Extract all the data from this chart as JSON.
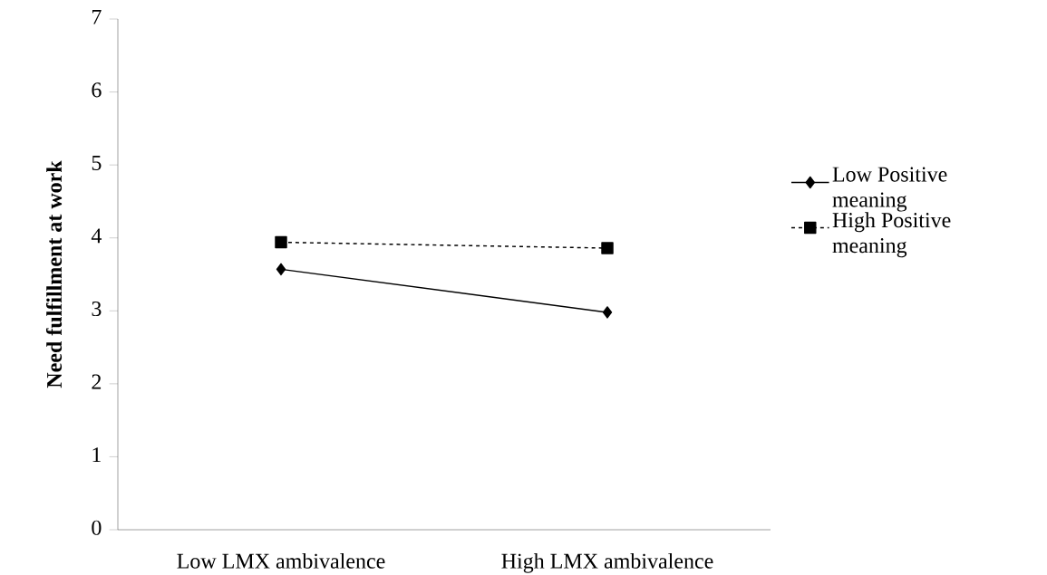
{
  "chart_data": {
    "type": "line",
    "ylabel": "Need fulfillment at work",
    "categories": [
      "Low LMX ambivalence",
      "High LMX ambivalence"
    ],
    "series": [
      {
        "name": "Low Positive meaning",
        "color": "#000000",
        "values": [
          3.57,
          2.98
        ],
        "marker": "diamond",
        "line_style": "solid"
      },
      {
        "name": "High Positive meaning",
        "color": "#000000",
        "values": [
          3.94,
          3.86
        ],
        "marker": "square",
        "line_style": "dashed"
      }
    ],
    "ylim": [
      0,
      7
    ],
    "yticks": [
      0,
      1,
      2,
      3,
      4,
      5,
      6,
      7
    ],
    "grid": false,
    "legend": "right"
  }
}
